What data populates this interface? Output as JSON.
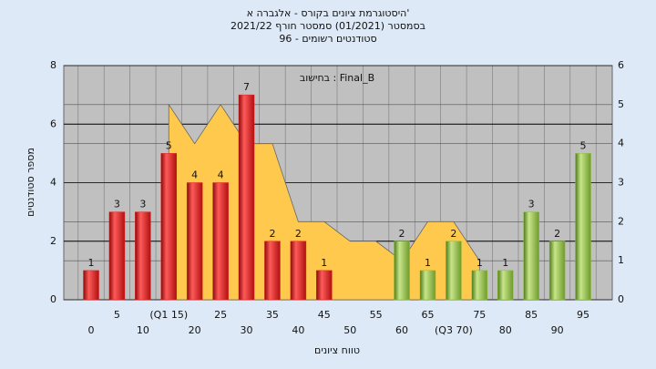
{
  "chart_data": {
    "type": "bar",
    "title": "היסטוגרמת ציונים בקורס - אלגברה א'",
    "subtitle": [
      "בסמסטר  (01/2021)  סמסטר חורף 2021/22",
      "סטודנטים רשומים - 96"
    ],
    "annotation": "בחישוב : Final_B",
    "x_label": "טווח ציונים",
    "y_label": "מספר סטודנטים",
    "categories": [
      "0",
      "5",
      "10",
      "(Q1 15)",
      "20",
      "25",
      "30",
      "35",
      "40",
      "45",
      "50",
      "55",
      "60",
      "65",
      "(Q3 70)",
      "75",
      "80",
      "85",
      "90",
      "95"
    ],
    "series": [
      {
        "type": "bar",
        "values": [
          1,
          3,
          3,
          5,
          4,
          4,
          7,
          2,
          2,
          1,
          0,
          0,
          2,
          1,
          2,
          1,
          1,
          3,
          2,
          5
        ],
        "colors": [
          "#e02020",
          "#e02020",
          "#e02020",
          "#e02020",
          "#e02020",
          "#e02020",
          "#e02020",
          "#e02020",
          "#e02020",
          "#e02020",
          "#e02020",
          "#e02020",
          "#8cbf3f",
          "#8cbf3f",
          "#8cbf3f",
          "#8cbf3f",
          "#8cbf3f",
          "#8cbf3f",
          "#8cbf3f",
          "#8cbf3f"
        ]
      },
      {
        "type": "area",
        "axis": "y2",
        "color": "#ffc94d",
        "values": [
          null,
          null,
          null,
          5,
          4,
          5,
          4,
          4,
          2,
          2,
          1.5,
          1.5,
          1,
          2,
          2,
          1,
          null,
          null,
          null,
          null
        ]
      }
    ],
    "ylim": [
      0,
      8
    ],
    "yticks": [
      0,
      2,
      4,
      6,
      8
    ],
    "y2lim": [
      0,
      6
    ],
    "y2ticks": [
      0,
      1,
      2,
      3,
      4,
      5,
      6
    ],
    "grid": true
  }
}
